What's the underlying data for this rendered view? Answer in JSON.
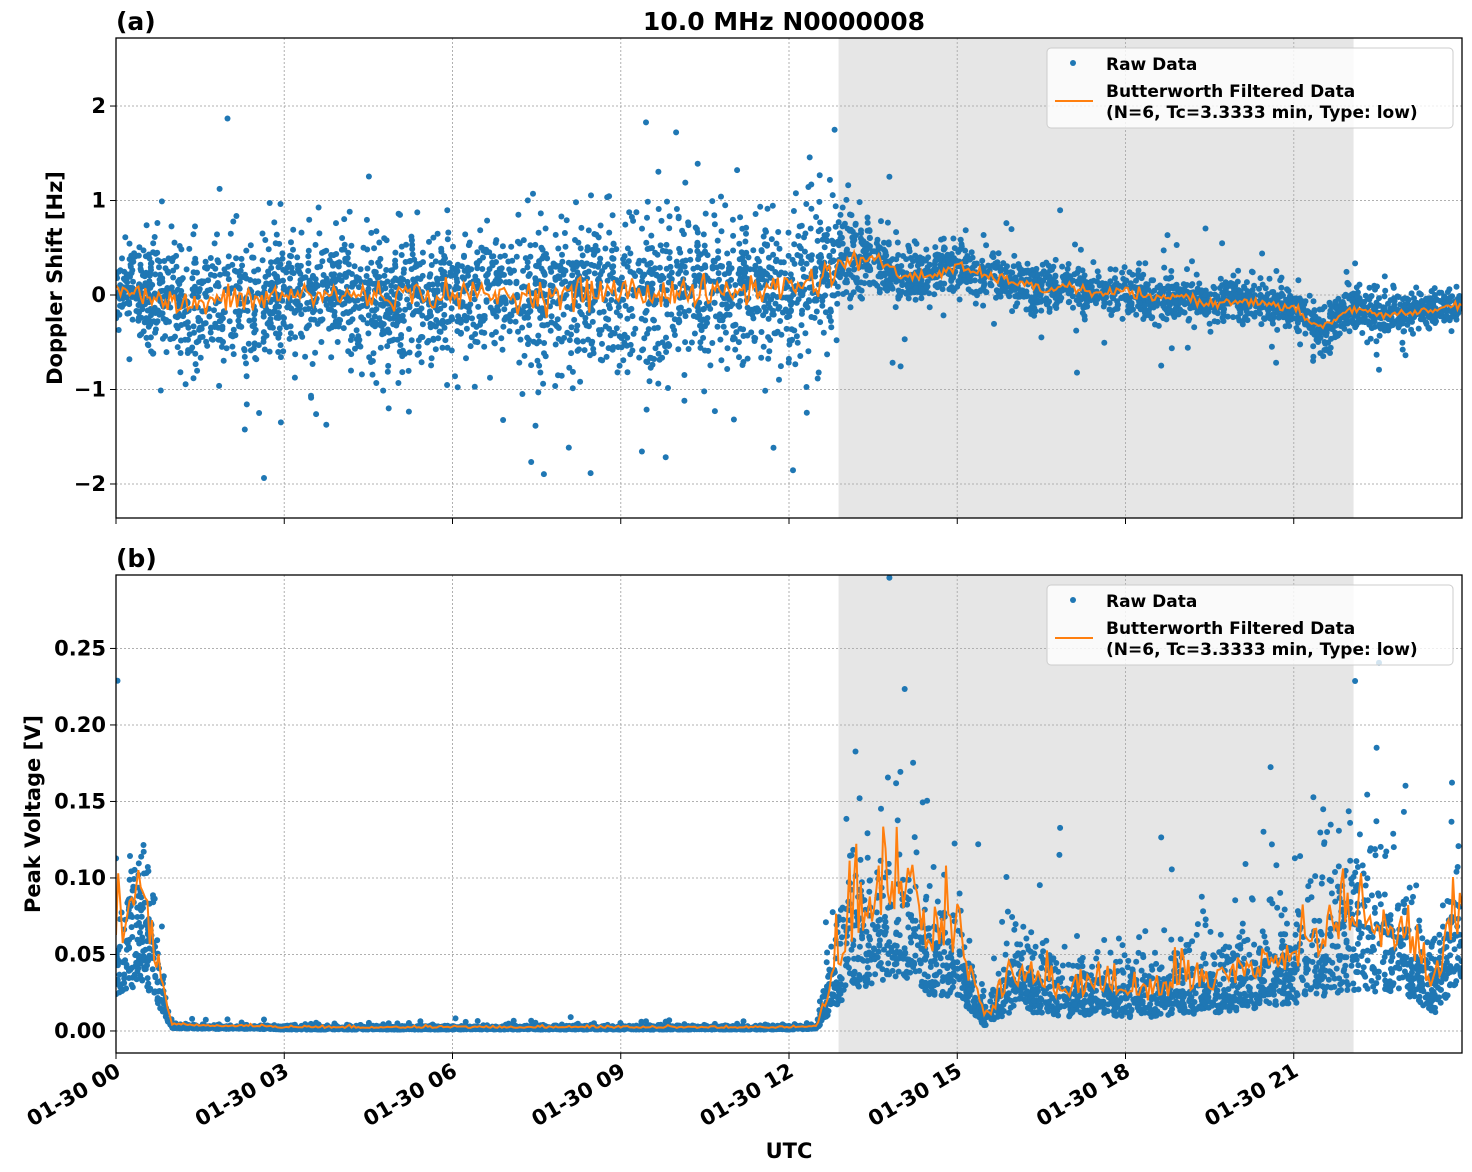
{
  "chart_data": [
    {
      "type": "scatter",
      "panel_label": "(a)",
      "title": "10.0 MHz N0000008",
      "xlabel": "",
      "ylabel": "Doppler Shift [Hz]",
      "xlim": [
        "01-30 00:00",
        "01-31 00:00"
      ],
      "ylim": [
        -2.36,
        2.72
      ],
      "yticks": [
        "−2",
        "−1",
        "0",
        "1",
        "2"
      ],
      "ytick_values": [
        -2,
        -1,
        0,
        1,
        2
      ],
      "grid": true,
      "shaded_interval": [
        "01-30 12:53",
        "01-30 22:04"
      ],
      "shade_color": "#e6e6e6",
      "legend": {
        "placement": "top-right",
        "entries": [
          "Raw Data",
          "Butterworth Filtered Data",
          "(N=6, Tc=3.3333 min, Type: low)"
        ]
      },
      "x_hours": [
        0,
        0.5,
        1,
        1.5,
        2,
        2.5,
        3,
        3.5,
        4,
        4.5,
        5,
        5.5,
        6,
        6.5,
        7,
        7.5,
        8,
        8.5,
        9,
        9.5,
        10,
        10.5,
        11,
        11.5,
        12,
        12.5,
        13,
        13.5,
        14,
        14.5,
        15,
        15.5,
        16,
        16.5,
        17,
        17.5,
        18,
        18.5,
        19,
        19.5,
        20,
        20.5,
        21,
        21.5,
        22,
        22.5,
        23,
        23.5,
        24
      ],
      "series": [
        {
          "name": "Butterworth Filtered Data",
          "color": "#ff7f0e",
          "values": [
            0.1,
            0.0,
            -0.1,
            -0.1,
            -0.05,
            -0.05,
            0,
            0,
            0,
            0,
            0,
            0,
            0,
            0,
            0,
            0,
            0,
            0.02,
            0.05,
            0,
            0.05,
            0,
            0.05,
            0.05,
            0.1,
            0.15,
            0.35,
            0.4,
            0.2,
            0.2,
            0.3,
            0.2,
            0.15,
            0.05,
            0.1,
            0,
            0.05,
            -0.05,
            0,
            -0.1,
            -0.05,
            -0.1,
            -0.15,
            -0.35,
            -0.15,
            -0.2,
            -0.2,
            -0.15,
            -0.1
          ]
        },
        {
          "name": "Raw Data",
          "color": "#1f77b4",
          "spread": [
            0.25,
            0.4,
            0.6,
            0.6,
            0.65,
            0.65,
            0.6,
            0.6,
            0.6,
            0.6,
            0.6,
            0.6,
            0.6,
            0.6,
            0.6,
            0.65,
            0.7,
            0.7,
            0.75,
            0.7,
            0.7,
            0.7,
            0.7,
            0.7,
            0.7,
            0.75,
            0.5,
            0.3,
            0.25,
            0.25,
            0.25,
            0.25,
            0.22,
            0.22,
            0.22,
            0.2,
            0.2,
            0.2,
            0.2,
            0.2,
            0.2,
            0.2,
            0.2,
            0.22,
            0.2,
            0.2,
            0.2,
            0.15,
            0.15
          ]
        }
      ]
    },
    {
      "type": "scatter",
      "panel_label": "(b)",
      "xlabel": "UTC",
      "ylabel": "Peak Voltage [V]",
      "xlim": [
        "01-30 00:00",
        "01-31 00:00"
      ],
      "ylim": [
        -0.0144,
        0.298
      ],
      "yticks": [
        "0.00",
        "0.05",
        "0.10",
        "0.15",
        "0.20",
        "0.25"
      ],
      "ytick_values": [
        0,
        0.05,
        0.1,
        0.15,
        0.2,
        0.25
      ],
      "xticks": [
        "01-30 00",
        "01-30 03",
        "01-30 06",
        "01-30 09",
        "01-30 12",
        "01-30 15",
        "01-30 18",
        "01-30 21"
      ],
      "xtick_hours": [
        0,
        3,
        6,
        9,
        12,
        15,
        18,
        21
      ],
      "grid": true,
      "shaded_interval": [
        "01-30 12:53",
        "01-30 22:04"
      ],
      "legend": {
        "placement": "top-right",
        "entries": [
          "Raw Data",
          "Butterworth Filtered Data",
          "(N=6, Tc=3.3333 min, Type: low)"
        ]
      },
      "x_hours": [
        0,
        0.5,
        1,
        1.5,
        2,
        2.5,
        3,
        3.5,
        4,
        4.5,
        5,
        5.5,
        6,
        6.5,
        7,
        7.5,
        8,
        8.5,
        9,
        9.5,
        10,
        10.5,
        11,
        11.5,
        12,
        12.5,
        13,
        13.5,
        14,
        14.5,
        15,
        15.5,
        16,
        16.5,
        17,
        17.5,
        18,
        18.5,
        19,
        19.5,
        20,
        20.5,
        21,
        21.5,
        22,
        22.5,
        23,
        23.5,
        24
      ],
      "series": [
        {
          "name": "Butterworth Filtered Data",
          "color": "#ff7f0e",
          "values": [
            0.05,
            0.07,
            0.004,
            0.003,
            0.003,
            0.003,
            0.002,
            0.002,
            0.002,
            0.002,
            0.002,
            0.002,
            0.002,
            0.002,
            0.002,
            0.002,
            0.002,
            0.002,
            0.002,
            0.002,
            0.002,
            0.002,
            0.002,
            0.002,
            0.002,
            0.003,
            0.05,
            0.07,
            0.08,
            0.05,
            0.05,
            0.006,
            0.03,
            0.025,
            0.02,
            0.025,
            0.02,
            0.02,
            0.025,
            0.025,
            0.03,
            0.035,
            0.04,
            0.05,
            0.06,
            0.055,
            0.05,
            0.025,
            0.07
          ]
        },
        {
          "name": "Raw Data",
          "color": "#1f77b4",
          "spread": [
            0.06,
            0.07,
            0.002,
            0.002,
            0.002,
            0.002,
            0.002,
            0.002,
            0.002,
            0.002,
            0.002,
            0.002,
            0.002,
            0.002,
            0.002,
            0.002,
            0.002,
            0.002,
            0.002,
            0.002,
            0.002,
            0.002,
            0.002,
            0.002,
            0.002,
            0.002,
            0.08,
            0.07,
            0.07,
            0.05,
            0.05,
            0.01,
            0.04,
            0.035,
            0.03,
            0.03,
            0.03,
            0.03,
            0.035,
            0.035,
            0.04,
            0.045,
            0.05,
            0.08,
            0.08,
            0.07,
            0.06,
            0.03,
            0.08
          ]
        }
      ]
    }
  ]
}
